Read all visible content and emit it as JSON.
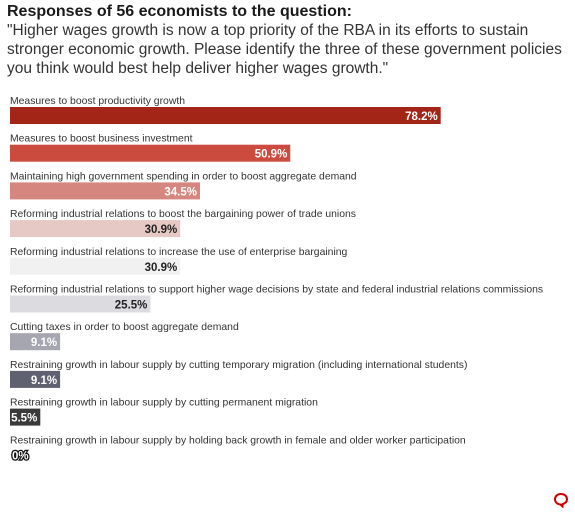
{
  "chart_data": {
    "type": "bar",
    "orientation": "horizontal",
    "title": "Responses of 56 economists to the question:",
    "subtitle": "\"Higher wages growth is now a top priority of the RBA in its efforts to sustain stronger economic growth. Please identify the three of these government policies you think would best help deliver higher wages growth.\"",
    "unit": "%",
    "xlim": [
      0,
      100
    ],
    "categories": [
      "Measures to boost productivity growth",
      "Measures to boost business investment",
      "Maintaining high government spending in order to boost aggregate demand",
      "Reforming industrial relations to boost the bargaining power of trade unions",
      "Reforming industrial relations to increase the use of enterprise bargaining",
      "Reforming industrial relations to support higher wage decisions by state and federal industrial relations commissions",
      "Cutting taxes in order to boost aggregate demand",
      "Restraining growth in labour supply by cutting temporary migration (including international students)",
      "Restraining growth in labour supply by cutting permanent migration",
      "Restraining growth in labour supply by holding back growth in female and older worker participation"
    ],
    "values": [
      78.2,
      50.9,
      34.5,
      30.9,
      30.9,
      25.5,
      9.1,
      9.1,
      5.5,
      0
    ],
    "value_labels": [
      "78.2%",
      "50.9%",
      "34.5%",
      "30.9%",
      "30.9%",
      "25.5%",
      "9.1%",
      "9.1%",
      "5.5%",
      "0%"
    ],
    "colors": [
      "#a32518",
      "#cc4b3f",
      "#d5877f",
      "#e6c9c5",
      "#f1f1f1",
      "#dcdce0",
      "#a5a6af",
      "#5f6070",
      "#3a3a3a",
      "#222222"
    ],
    "label_colors": [
      "#ffffff",
      "#ffffff",
      "#ffffff",
      "#222222",
      "#222222",
      "#222222",
      "#ffffff",
      "#ffffff",
      "#ffffff",
      "#ffffff"
    ]
  },
  "logo": {
    "name": "chat-bubble-logo",
    "color": "#cc0000"
  }
}
